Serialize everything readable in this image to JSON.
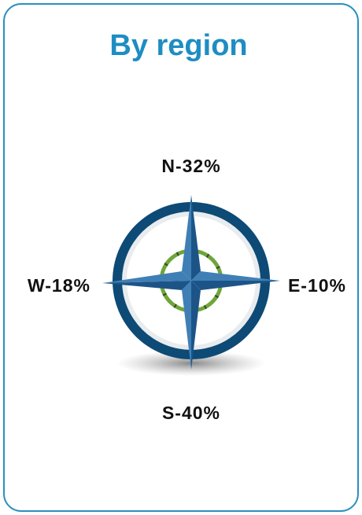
{
  "title": "By region",
  "directions": [
    {
      "label": "N-32%"
    },
    {
      "label": "E-10%"
    },
    {
      "label": "S-40%"
    },
    {
      "label": "W-18%"
    }
  ]
}
